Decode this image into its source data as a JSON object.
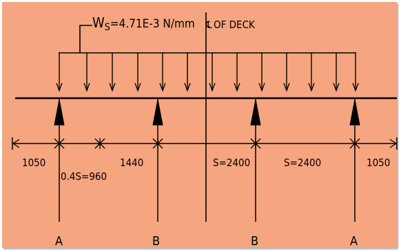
{
  "load": {
    "symbol_main": "W",
    "symbol_sub": "S",
    "value": "=4.71E-3 N/mm"
  },
  "centerline_label": "OF DECK",
  "centerline_symbol": "℄",
  "dimensions": [
    {
      "label": "1050"
    },
    {
      "label": "0.4S=960"
    },
    {
      "label": "1440"
    },
    {
      "label": "S=2400"
    },
    {
      "label": "S=2400"
    },
    {
      "label": "1050"
    }
  ],
  "supports": [
    {
      "label": "A"
    },
    {
      "label": "B"
    },
    {
      "label": "B"
    },
    {
      "label": "A"
    }
  ],
  "colors": {
    "background": "#f5a57f",
    "ink": "#000000"
  }
}
